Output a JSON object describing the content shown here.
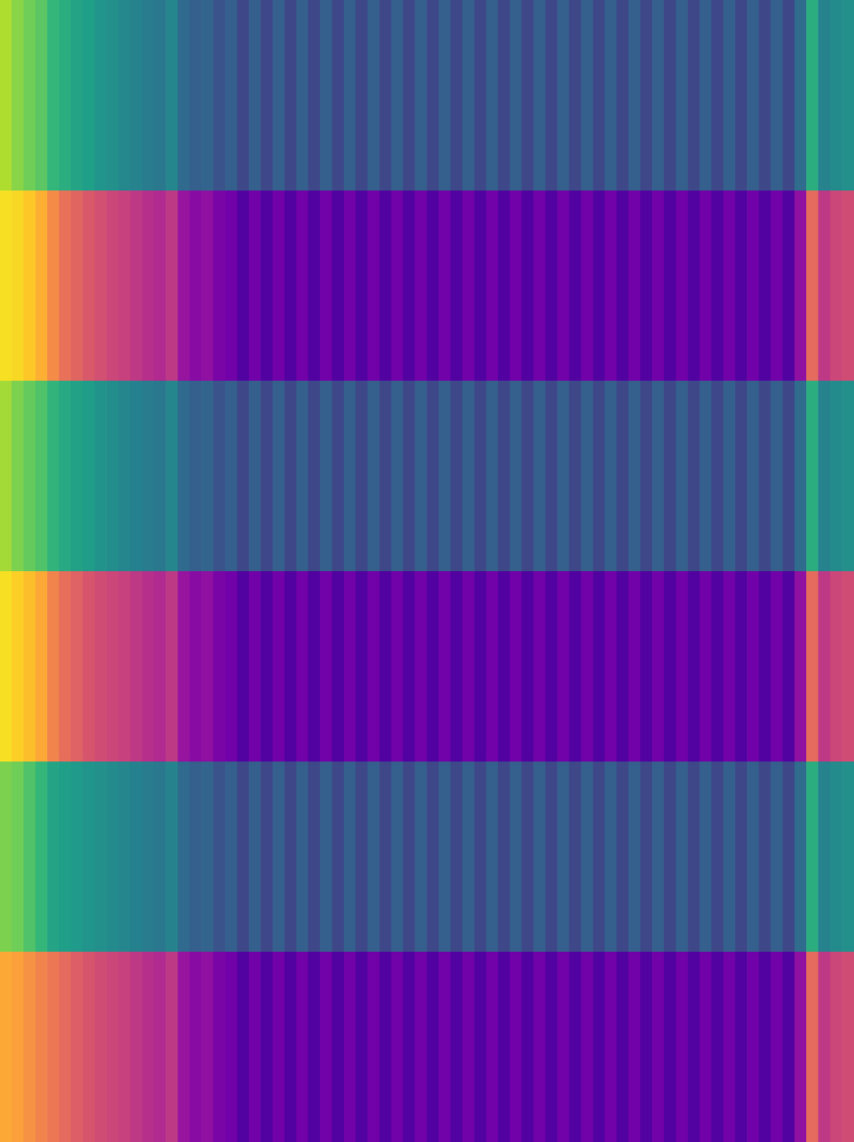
{
  "chart_data": {
    "type": "heatmap",
    "tick_labels": false,
    "grid": false,
    "zlim": [
      0,
      1
    ],
    "rows": [
      {
        "color": "viridis",
        "values": [
          0.88,
          0.82,
          0.78,
          0.74,
          0.66,
          0.62,
          0.58,
          0.56,
          0.52,
          0.5,
          0.47,
          0.45,
          0.42,
          0.4,
          0.46,
          0.34,
          0.3,
          0.32,
          0.26,
          0.3,
          0.22,
          0.3,
          0.22,
          0.3,
          0.22,
          0.3,
          0.22,
          0.3,
          0.22,
          0.3,
          0.22,
          0.3,
          0.22,
          0.3,
          0.22,
          0.3,
          0.22,
          0.3,
          0.22,
          0.3,
          0.22,
          0.3,
          0.22,
          0.3,
          0.22,
          0.3,
          0.22,
          0.3,
          0.22,
          0.3,
          0.22,
          0.3,
          0.22,
          0.3,
          0.22,
          0.3,
          0.22,
          0.3,
          0.22,
          0.3,
          0.22,
          0.3,
          0.22,
          0.3,
          0.22,
          0.3,
          0.22,
          0.35,
          0.62,
          0.45,
          0.48,
          0.5
        ]
      },
      {
        "color": "plasma",
        "values": [
          0.94,
          0.92,
          0.88,
          0.82,
          0.72,
          0.64,
          0.6,
          0.56,
          0.53,
          0.5,
          0.48,
          0.45,
          0.42,
          0.4,
          0.45,
          0.32,
          0.28,
          0.3,
          0.24,
          0.22,
          0.14,
          0.22,
          0.14,
          0.22,
          0.14,
          0.22,
          0.14,
          0.22,
          0.14,
          0.22,
          0.14,
          0.22,
          0.14,
          0.22,
          0.14,
          0.22,
          0.14,
          0.22,
          0.14,
          0.22,
          0.14,
          0.22,
          0.14,
          0.22,
          0.14,
          0.22,
          0.14,
          0.22,
          0.14,
          0.22,
          0.14,
          0.22,
          0.14,
          0.22,
          0.14,
          0.22,
          0.14,
          0.22,
          0.14,
          0.22,
          0.14,
          0.22,
          0.14,
          0.22,
          0.14,
          0.22,
          0.14,
          0.3,
          0.62,
          0.45,
          0.5,
          0.52
        ]
      },
      {
        "color": "viridis",
        "values": [
          0.86,
          0.8,
          0.76,
          0.72,
          0.65,
          0.6,
          0.57,
          0.55,
          0.51,
          0.49,
          0.46,
          0.44,
          0.42,
          0.4,
          0.46,
          0.34,
          0.3,
          0.32,
          0.26,
          0.3,
          0.22,
          0.3,
          0.22,
          0.3,
          0.22,
          0.3,
          0.22,
          0.3,
          0.22,
          0.3,
          0.22,
          0.3,
          0.22,
          0.3,
          0.22,
          0.3,
          0.22,
          0.3,
          0.22,
          0.3,
          0.22,
          0.3,
          0.22,
          0.3,
          0.22,
          0.3,
          0.22,
          0.3,
          0.22,
          0.3,
          0.22,
          0.3,
          0.22,
          0.3,
          0.22,
          0.3,
          0.22,
          0.3,
          0.22,
          0.3,
          0.22,
          0.3,
          0.22,
          0.3,
          0.22,
          0.3,
          0.22,
          0.35,
          0.62,
          0.45,
          0.48,
          0.5
        ]
      },
      {
        "color": "plasma",
        "values": [
          0.94,
          0.9,
          0.86,
          0.8,
          0.7,
          0.63,
          0.59,
          0.55,
          0.52,
          0.5,
          0.48,
          0.45,
          0.42,
          0.4,
          0.45,
          0.32,
          0.28,
          0.3,
          0.24,
          0.22,
          0.14,
          0.22,
          0.14,
          0.22,
          0.14,
          0.22,
          0.14,
          0.22,
          0.14,
          0.22,
          0.14,
          0.22,
          0.14,
          0.22,
          0.14,
          0.22,
          0.14,
          0.22,
          0.14,
          0.22,
          0.14,
          0.22,
          0.14,
          0.22,
          0.14,
          0.22,
          0.14,
          0.22,
          0.14,
          0.22,
          0.14,
          0.22,
          0.14,
          0.22,
          0.14,
          0.22,
          0.14,
          0.22,
          0.14,
          0.22,
          0.14,
          0.22,
          0.14,
          0.22,
          0.14,
          0.22,
          0.14,
          0.3,
          0.62,
          0.45,
          0.5,
          0.52
        ]
      },
      {
        "color": "viridis",
        "values": [
          0.8,
          0.78,
          0.72,
          0.66,
          0.58,
          0.56,
          0.54,
          0.52,
          0.5,
          0.48,
          0.46,
          0.44,
          0.42,
          0.4,
          0.45,
          0.34,
          0.3,
          0.32,
          0.26,
          0.3,
          0.22,
          0.3,
          0.22,
          0.3,
          0.22,
          0.3,
          0.22,
          0.3,
          0.22,
          0.3,
          0.22,
          0.3,
          0.22,
          0.3,
          0.22,
          0.3,
          0.22,
          0.3,
          0.22,
          0.3,
          0.22,
          0.3,
          0.22,
          0.3,
          0.22,
          0.3,
          0.22,
          0.3,
          0.22,
          0.3,
          0.22,
          0.3,
          0.22,
          0.3,
          0.22,
          0.3,
          0.22,
          0.3,
          0.22,
          0.3,
          0.22,
          0.3,
          0.22,
          0.3,
          0.22,
          0.3,
          0.22,
          0.35,
          0.62,
          0.45,
          0.48,
          0.5
        ]
      },
      {
        "color": "plasma",
        "values": [
          0.8,
          0.78,
          0.74,
          0.7,
          0.66,
          0.62,
          0.58,
          0.55,
          0.52,
          0.5,
          0.48,
          0.45,
          0.42,
          0.4,
          0.45,
          0.32,
          0.28,
          0.3,
          0.24,
          0.22,
          0.14,
          0.22,
          0.14,
          0.22,
          0.14,
          0.22,
          0.14,
          0.22,
          0.14,
          0.22,
          0.14,
          0.22,
          0.14,
          0.22,
          0.14,
          0.22,
          0.14,
          0.22,
          0.14,
          0.22,
          0.14,
          0.22,
          0.14,
          0.22,
          0.14,
          0.22,
          0.14,
          0.22,
          0.14,
          0.22,
          0.14,
          0.22,
          0.14,
          0.22,
          0.14,
          0.22,
          0.14,
          0.22,
          0.14,
          0.22,
          0.14,
          0.22,
          0.14,
          0.22,
          0.14,
          0.22,
          0.14,
          0.3,
          0.62,
          0.45,
          0.5,
          0.52
        ]
      }
    ]
  }
}
